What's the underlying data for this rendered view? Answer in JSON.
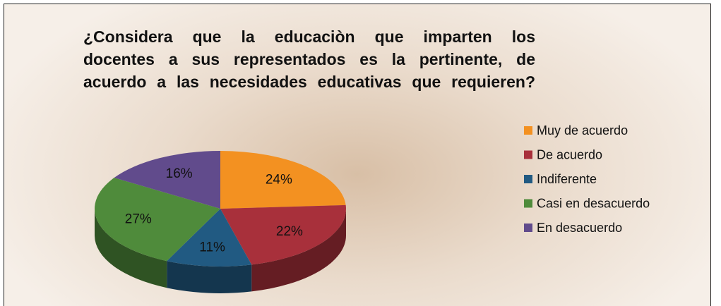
{
  "chart_data": {
    "type": "pie3d",
    "title": [
      "¿Considera que la educaciòn que imparten los",
      "docentes a sus representados es la pertinente, de",
      "acuerdo a las necesidades educativas que requieren?"
    ],
    "categories": [
      "Muy de acuerdo",
      "De acuerdo",
      "Indiferente",
      "Casi en desacuerdo",
      "En desacuerdo"
    ],
    "values": [
      24,
      22,
      11,
      27,
      16
    ],
    "value_labels": [
      "24%",
      "22%",
      "11%",
      "27%",
      "16%"
    ],
    "colors": [
      "#f39121",
      "#a8303b",
      "#215a82",
      "#4f8b3b",
      "#614b8c"
    ],
    "legend": "right"
  }
}
